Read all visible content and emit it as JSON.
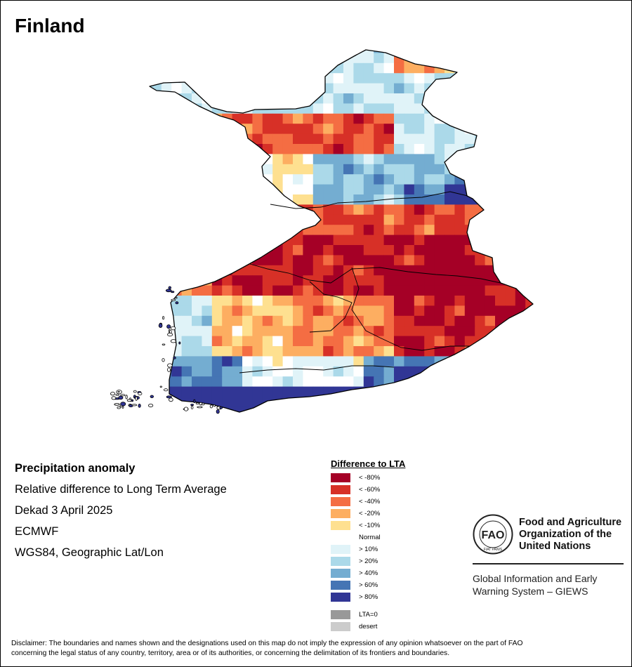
{
  "map": {
    "title": "Finland",
    "colors": {
      "water": "#ffffff",
      "outline": "#000000"
    }
  },
  "info": {
    "line1": "Precipitation anomaly",
    "line2": "Relative difference to Long Term Average",
    "line3": "Dekad 3 April 2025",
    "line4": "ECMWF",
    "line5": "WGS84, Geographic Lat/Lon"
  },
  "legend": {
    "title": "Difference to LTA",
    "classes": [
      {
        "label": "< -80%",
        "color": "#a50026"
      },
      {
        "label": "< -60%",
        "color": "#d73027"
      },
      {
        "label": "< -40%",
        "color": "#f46d43"
      },
      {
        "label": "< -20%",
        "color": "#fdae61"
      },
      {
        "label": "< -10%",
        "color": "#fee090"
      },
      {
        "label": "Normal",
        "color": "#ffffff"
      },
      {
        "label": "> 10%",
        "color": "#e0f3f8"
      },
      {
        "label": "> 20%",
        "color": "#abd9e9"
      },
      {
        "label": "> 40%",
        "color": "#74add1"
      },
      {
        "label": "> 60%",
        "color": "#4575b4"
      },
      {
        "label": "> 80%",
        "color": "#313695"
      }
    ],
    "extra": [
      {
        "label": "LTA=0",
        "color": "#999999"
      },
      {
        "label": "desert",
        "color": "#cccccc"
      }
    ]
  },
  "org": {
    "logo_text": "FAO",
    "logo_motto": "FIAT PANIS",
    "name_line1": "Food and Agriculture",
    "name_line2": "Organization of the",
    "name_line3": "United Nations",
    "giews_line1": "Global Information and Early",
    "giews_line2": "Warning System – GIEWS"
  },
  "disclaimer": {
    "line1": "Disclaimer: The boundaries and names shown and the designations used on this map do not imply the expression of any opinion whatsoever on the part of FAO",
    "line2": "concerning the legal status of any country, territory, area or of its authorities, or concerning the delimitation of its frontiers and boundaries."
  }
}
